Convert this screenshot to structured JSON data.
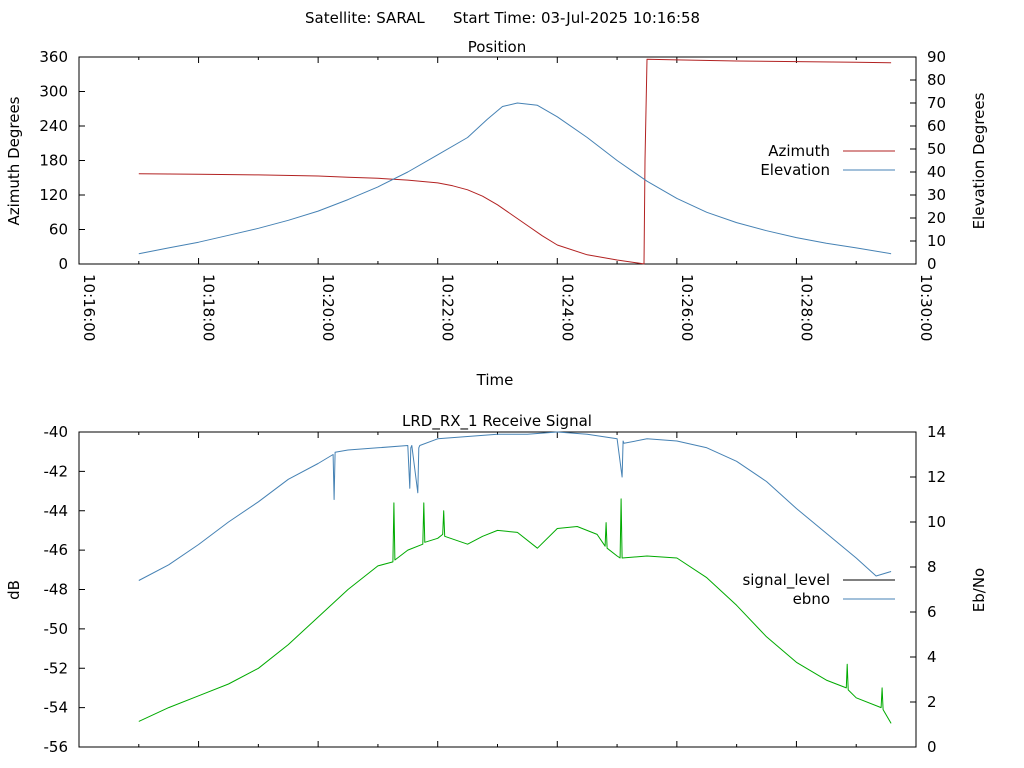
{
  "header": {
    "satellite": "Satellite: SARAL",
    "start_time": "Start Time: 03-Jul-2025 10:16:58"
  },
  "chart_data": [
    {
      "type": "line",
      "title": "Position",
      "xlabel": "Time",
      "ylabel": "Azimuth Degrees",
      "y2label": "Elevation Degrees",
      "xlim": [
        "10:16:00",
        "10:30:00"
      ],
      "ylim": [
        0,
        360
      ],
      "y2lim": [
        0,
        90
      ],
      "x_ticks": [
        "10:16:00",
        "10:18:00",
        "10:20:00",
        "10:22:00",
        "10:24:00",
        "10:26:00",
        "10:28:00",
        "10:30:00"
      ],
      "y_ticks": [
        0,
        60,
        120,
        180,
        240,
        300,
        360
      ],
      "y2_ticks": [
        0,
        10,
        20,
        30,
        40,
        50,
        60,
        70,
        80,
        90
      ],
      "legend_position": "right",
      "grid": false,
      "series": [
        {
          "name": "Azimuth",
          "axis": "left",
          "color": "#b22222",
          "x": [
            "10:17:00",
            "10:18:00",
            "10:19:00",
            "10:20:00",
            "10:20:30",
            "10:21:00",
            "10:21:30",
            "10:22:00",
            "10:22:15",
            "10:22:30",
            "10:22:45",
            "10:23:00",
            "10:23:15",
            "10:23:30",
            "10:23:45",
            "10:24:00",
            "10:24:30",
            "10:25:00",
            "10:25:20",
            "10:25:26",
            "10:25:27",
            "10:25:28",
            "10:25:30",
            "10:26:00",
            "10:27:00",
            "10:28:00",
            "10:29:00",
            "10:29:35"
          ],
          "values": [
            157,
            156,
            155,
            153,
            151,
            149,
            146,
            141,
            136,
            129,
            118,
            103,
            85,
            67,
            49,
            33,
            16,
            7,
            2,
            0.5,
            0,
            180,
            356,
            355,
            353,
            352,
            351,
            350
          ]
        },
        {
          "name": "Elevation",
          "axis": "right",
          "color": "#4682b4",
          "x": [
            "10:17:00",
            "10:17:30",
            "10:18:00",
            "10:18:30",
            "10:19:00",
            "10:19:30",
            "10:20:00",
            "10:20:30",
            "10:21:00",
            "10:21:30",
            "10:22:00",
            "10:22:30",
            "10:22:50",
            "10:23:05",
            "10:23:20",
            "10:23:40",
            "10:24:00",
            "10:24:30",
            "10:25:00",
            "10:25:30",
            "10:26:00",
            "10:26:30",
            "10:27:00",
            "10:27:30",
            "10:28:00",
            "10:28:30",
            "10:29:00",
            "10:29:35"
          ],
          "values": [
            4.5,
            7,
            9.5,
            12.5,
            15.5,
            19,
            23,
            28,
            33.5,
            40,
            47.5,
            55,
            63,
            68.5,
            70,
            69,
            64,
            55,
            45,
            36,
            28.5,
            22.5,
            18,
            14.5,
            11.5,
            9,
            7,
            4.5
          ]
        }
      ]
    },
    {
      "type": "line",
      "title": "LRD_RX_1 Receive Signal",
      "xlabel": "",
      "ylabel": "dB",
      "y2label": "Eb/No",
      "xlim": [
        "10:16:00",
        "10:30:00"
      ],
      "ylim": [
        -56,
        -40
      ],
      "y2lim": [
        0,
        14
      ],
      "y_ticks": [
        -56,
        -54,
        -52,
        -50,
        -48,
        -46,
        -44,
        -42,
        -40
      ],
      "y2_ticks": [
        0,
        2,
        4,
        6,
        8,
        10,
        12,
        14
      ],
      "legend_position": "right",
      "grid": false,
      "series": [
        {
          "name": "signal_level",
          "axis": "left",
          "color": "#00aa00",
          "legend_color": "#000000",
          "x": [
            "10:17:00",
            "10:17:30",
            "10:18:00",
            "10:18:30",
            "10:19:00",
            "10:19:30",
            "10:20:00",
            "10:20:30",
            "10:21:00",
            "10:21:15",
            "10:21:16",
            "10:21:17",
            "10:21:30",
            "10:21:45",
            "10:21:46",
            "10:21:47",
            "10:22:00",
            "10:22:05",
            "10:22:06",
            "10:22:07",
            "10:22:30",
            "10:22:45",
            "10:23:00",
            "10:23:20",
            "10:23:40",
            "10:24:00",
            "10:24:20",
            "10:24:40",
            "10:24:48",
            "10:24:49",
            "10:24:50",
            "10:25:00",
            "10:25:03",
            "10:25:04",
            "10:25:05",
            "10:25:30",
            "10:26:00",
            "10:26:30",
            "10:27:00",
            "10:27:30",
            "10:28:00",
            "10:28:30",
            "10:28:50",
            "10:28:51",
            "10:28:52",
            "10:29:00",
            "10:29:25",
            "10:29:26",
            "10:29:27",
            "10:29:35"
          ],
          "values": [
            -54.7,
            -54.0,
            -53.4,
            -52.8,
            -52.0,
            -50.8,
            -49.4,
            -48.0,
            -46.8,
            -46.6,
            -43.6,
            -46.5,
            -46.0,
            -45.7,
            -43.6,
            -45.6,
            -45.4,
            -45.2,
            -44.0,
            -45.3,
            -45.7,
            -45.3,
            -45.0,
            -45.1,
            -45.9,
            -44.9,
            -44.8,
            -45.2,
            -45.8,
            -44.6,
            -45.9,
            -46.3,
            -46.4,
            -43.4,
            -46.4,
            -46.3,
            -46.4,
            -47.4,
            -48.8,
            -50.4,
            -51.7,
            -52.6,
            -53.0,
            -51.8,
            -53.1,
            -53.5,
            -54.0,
            -53.0,
            -54.1,
            -54.8
          ]
        },
        {
          "name": "ebno",
          "axis": "right",
          "color": "#4682b4",
          "x": [
            "10:17:00",
            "10:17:30",
            "10:18:00",
            "10:18:30",
            "10:19:00",
            "10:19:30",
            "10:20:00",
            "10:20:15",
            "10:20:16",
            "10:20:17",
            "10:20:30",
            "10:21:00",
            "10:21:30",
            "10:21:32",
            "10:21:33",
            "10:21:34",
            "10:21:40",
            "10:21:41",
            "10:21:42",
            "10:22:00",
            "10:22:30",
            "10:23:00",
            "10:23:30",
            "10:24:00",
            "10:24:30",
            "10:25:00",
            "10:25:05",
            "10:25:06",
            "10:25:07",
            "10:25:30",
            "10:26:00",
            "10:26:30",
            "10:27:00",
            "10:27:30",
            "10:28:00",
            "10:28:30",
            "10:29:00",
            "10:29:20",
            "10:29:35"
          ],
          "values": [
            7.4,
            8.1,
            9.0,
            10.0,
            10.9,
            11.9,
            12.6,
            13.0,
            11.0,
            13.1,
            13.2,
            13.3,
            13.4,
            11.5,
            13.3,
            13.4,
            11.3,
            13.3,
            13.4,
            13.7,
            13.8,
            13.9,
            13.9,
            14.0,
            13.9,
            13.7,
            12.0,
            13.6,
            13.5,
            13.7,
            13.6,
            13.3,
            12.7,
            11.8,
            10.6,
            9.5,
            8.4,
            7.6,
            7.8
          ]
        }
      ]
    }
  ]
}
